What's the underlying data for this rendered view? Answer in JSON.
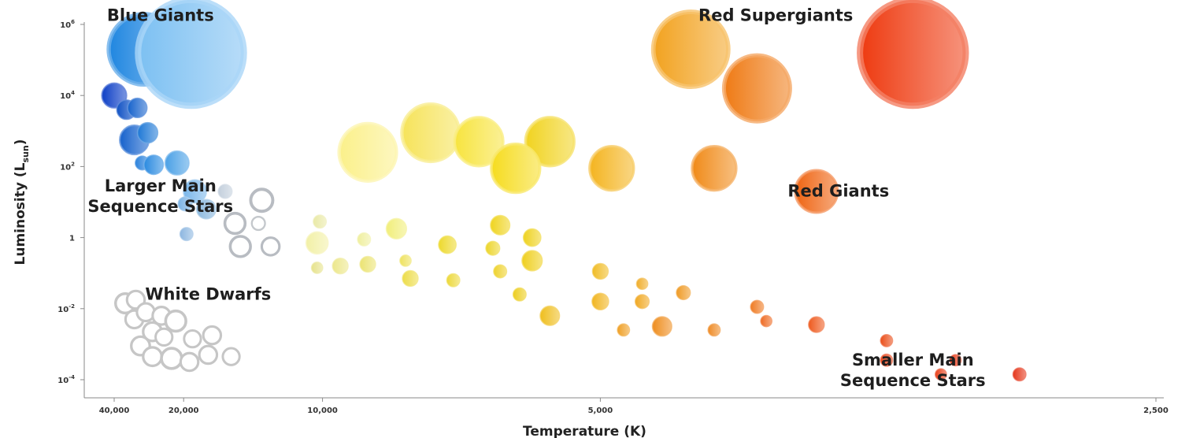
{
  "chart_data": {
    "type": "scatter",
    "title": "",
    "xlabel": "Temperature (K)",
    "ylabel": "Luminosity (L",
    "ylabel_sub": "sun",
    "ylabel_close": ")",
    "x_scale": "reciprocal",
    "xlim": [
      40000,
      2500
    ],
    "y_scale": "log",
    "ylim_exponent": [
      -4,
      6
    ],
    "grid": false,
    "x_ticks": [
      {
        "value": 40000,
        "label": "40,000"
      },
      {
        "value": 20000,
        "label": "20,000"
      },
      {
        "value": 10000,
        "label": "10,000"
      },
      {
        "value": 5000,
        "label": "5,000"
      },
      {
        "value": 2500,
        "label": "2,500"
      }
    ],
    "y_ticks": [
      {
        "exp": 6,
        "base": "10",
        "sup": "6"
      },
      {
        "exp": 4,
        "base": "10",
        "sup": "4"
      },
      {
        "exp": 2,
        "base": "10",
        "sup": "2"
      },
      {
        "exp": 0,
        "base": "1",
        "sup": ""
      },
      {
        "exp": -2,
        "base": "10",
        "sup": "-2"
      },
      {
        "exp": -4,
        "base": "10",
        "sup": "-4"
      }
    ],
    "groups": [
      {
        "name": "Blue Giants",
        "label_lines": [
          "Blue Giants"
        ],
        "label_x": 24000,
        "label_exp": 6.1
      },
      {
        "name": "Red Supergiants",
        "label_lines": [
          "Red Supergiants"
        ],
        "label_x": 3800,
        "label_exp": 6.1
      },
      {
        "name": "Larger Main Sequence Stars",
        "label_lines": [
          "Larger Main",
          "Sequence Stars"
        ],
        "label_x": 24000,
        "label_exp": 1.3
      },
      {
        "name": "Red Giants",
        "label_lines": [
          "Red Giants"
        ],
        "label_x": 3500,
        "label_exp": 1.15
      },
      {
        "name": "White Dwarfs",
        "label_lines": [
          "White Dwarfs"
        ],
        "label_x": 17000,
        "label_exp": -1.75
      },
      {
        "name": "Smaller Main Sequence Stars",
        "label_lines": [
          "Smaller Main",
          "Sequence Stars"
        ],
        "label_x": 3200,
        "label_exp": -3.6
      }
    ],
    "stars": [
      {
        "group": "Blue Giants",
        "temp": 28000,
        "exp": 5.3,
        "size": 8,
        "color": "#1f86e0",
        "fill": true
      },
      {
        "group": "Blue Giants",
        "temp": 19000,
        "exp": 5.2,
        "size": 12,
        "color": "#7cc0f2",
        "fill": true
      },
      {
        "group": "Red Supergiants",
        "temp": 4300,
        "exp": 5.3,
        "size": 8.5,
        "color": "#f2a21f",
        "fill": true
      },
      {
        "group": "Red Supergiants",
        "temp": 3200,
        "exp": 5.2,
        "size": 12,
        "color": "#ee3a10",
        "fill": true
      },
      {
        "group": "Red Supergiants",
        "temp": 3900,
        "exp": 4.2,
        "size": 7.5,
        "color": "#ef7a14",
        "fill": true
      },
      {
        "group": "Larger Main Sequence Stars",
        "temp": 40000,
        "exp": 4.0,
        "size": 2.8,
        "color": "#0d3fc6",
        "fill": true
      },
      {
        "group": "Larger Main Sequence Stars",
        "temp": 34000,
        "exp": 3.6,
        "size": 2.2,
        "color": "#1152c4",
        "fill": true
      },
      {
        "group": "Larger Main Sequence Stars",
        "temp": 30000,
        "exp": 3.65,
        "size": 2.2,
        "color": "#1662cc",
        "fill": true
      },
      {
        "group": "Larger Main Sequence Stars",
        "temp": 31000,
        "exp": 2.75,
        "size": 3.3,
        "color": "#1662cc",
        "fill": true
      },
      {
        "group": "Larger Main Sequence Stars",
        "temp": 27000,
        "exp": 2.95,
        "size": 2.3,
        "color": "#1e78d6",
        "fill": true
      },
      {
        "group": "Larger Main Sequence Stars",
        "temp": 28500,
        "exp": 2.1,
        "size": 1.6,
        "color": "#2a82dc",
        "fill": true
      },
      {
        "group": "Larger Main Sequence Stars",
        "temp": 25500,
        "exp": 2.05,
        "size": 2.2,
        "color": "#2a8ae0",
        "fill": true
      },
      {
        "group": "Larger Main Sequence Stars",
        "temp": 21000,
        "exp": 2.1,
        "size": 2.7,
        "color": "#4aa0e6",
        "fill": true
      },
      {
        "group": "Larger Main Sequence Stars",
        "temp": 18500,
        "exp": 1.3,
        "size": 2.6,
        "color": "#79b6ea",
        "fill": true
      },
      {
        "group": "Larger Main Sequence Stars",
        "temp": 19800,
        "exp": 0.95,
        "size": 1.6,
        "color": "#7ab2e4",
        "fill": true
      },
      {
        "group": "Larger Main Sequence Stars",
        "temp": 17200,
        "exp": 0.8,
        "size": 2.2,
        "color": "#8ab8de",
        "fill": true
      },
      {
        "group": "Larger Main Sequence Stars",
        "temp": 19600,
        "exp": 0.1,
        "size": 1.5,
        "color": "#8cb6e0",
        "fill": true
      },
      {
        "group": "Larger Main Sequence Stars",
        "temp": 15400,
        "exp": 1.3,
        "size": 1.6,
        "color": "#c3cfdc",
        "fill": true
      },
      {
        "group": "Larger Main Sequence Stars",
        "temp": 12800,
        "exp": 1.05,
        "size": 2.5,
        "color": "#b8bcc2",
        "fill": false
      },
      {
        "group": "Larger Main Sequence Stars",
        "temp": 14600,
        "exp": 0.4,
        "size": 2.3,
        "color": "#b8bcc2",
        "fill": false
      },
      {
        "group": "Larger Main Sequence Stars",
        "temp": 13000,
        "exp": 0.4,
        "size": 1.5,
        "color": "#c4c8cc",
        "fill": false
      },
      {
        "group": "Larger Main Sequence Stars",
        "temp": 14200,
        "exp": -0.25,
        "size": 2.3,
        "color": "#b8bcc2",
        "fill": false
      },
      {
        "group": "Larger Main Sequence Stars",
        "temp": 12300,
        "exp": -0.25,
        "size": 2.0,
        "color": "#b8bcc2",
        "fill": false
      },
      {
        "group": "Red Giants",
        "temp": 8600,
        "exp": 2.4,
        "size": 6.5,
        "color": "#fbf08a",
        "fill": true
      },
      {
        "group": "Red Giants",
        "temp": 7200,
        "exp": 2.95,
        "size": 6.5,
        "color": "#f6e35a",
        "fill": true
      },
      {
        "group": "Red Giants",
        "temp": 6400,
        "exp": 2.7,
        "size": 5.5,
        "color": "#f7e43e",
        "fill": true
      },
      {
        "group": "Red Giants",
        "temp": 5500,
        "exp": 2.7,
        "size": 5.5,
        "color": "#f1d31f",
        "fill": true
      },
      {
        "group": "Red Giants",
        "temp": 5900,
        "exp": 1.95,
        "size": 5.5,
        "color": "#f6dc1f",
        "fill": true
      },
      {
        "group": "Red Giants",
        "temp": 4900,
        "exp": 1.95,
        "size": 5.0,
        "color": "#f4b41f",
        "fill": true
      },
      {
        "group": "Red Giants",
        "temp": 4150,
        "exp": 1.95,
        "size": 5.0,
        "color": "#f08a18",
        "fill": true
      },
      {
        "group": "Red Giants",
        "temp": 3600,
        "exp": 1.3,
        "size": 4.8,
        "color": "#ef6412",
        "fill": true
      },
      {
        "group": "Smaller Main Sequence Stars",
        "temp": 10200,
        "exp": -0.15,
        "size": 2.5,
        "color": "#f2f0a6",
        "fill": true
      },
      {
        "group": "Smaller Main Sequence Stars",
        "temp": 10100,
        "exp": 0.45,
        "size": 1.5,
        "color": "#e9e9a6",
        "fill": true
      },
      {
        "group": "Smaller Main Sequence Stars",
        "temp": 8700,
        "exp": -0.05,
        "size": 1.5,
        "color": "#efef9e",
        "fill": true
      },
      {
        "group": "Smaller Main Sequence Stars",
        "temp": 7900,
        "exp": 0.25,
        "size": 2.3,
        "color": "#f1ee7a",
        "fill": true
      },
      {
        "group": "Smaller Main Sequence Stars",
        "temp": 10200,
        "exp": -0.85,
        "size": 1.3,
        "color": "#e6e28a",
        "fill": true
      },
      {
        "group": "Smaller Main Sequence Stars",
        "temp": 9400,
        "exp": -0.8,
        "size": 1.8,
        "color": "#ece78a",
        "fill": true
      },
      {
        "group": "Smaller Main Sequence Stars",
        "temp": 8600,
        "exp": -0.75,
        "size": 1.8,
        "color": "#ebe372",
        "fill": true
      },
      {
        "group": "Smaller Main Sequence Stars",
        "temp": 7700,
        "exp": -0.65,
        "size": 1.3,
        "color": "#eee25e",
        "fill": true
      },
      {
        "group": "Smaller Main Sequence Stars",
        "temp": 7600,
        "exp": -1.15,
        "size": 1.8,
        "color": "#ecdc48",
        "fill": true
      },
      {
        "group": "Smaller Main Sequence Stars",
        "temp": 6800,
        "exp": -1.2,
        "size": 1.5,
        "color": "#ecd83a",
        "fill": true
      },
      {
        "group": "Smaller Main Sequence Stars",
        "temp": 6900,
        "exp": -0.2,
        "size": 2.0,
        "color": "#edd92c",
        "fill": true
      },
      {
        "group": "Smaller Main Sequence Stars",
        "temp": 6200,
        "exp": -0.3,
        "size": 1.6,
        "color": "#ecd52a",
        "fill": true
      },
      {
        "group": "Smaller Main Sequence Stars",
        "temp": 6100,
        "exp": -0.95,
        "size": 1.5,
        "color": "#eed22c",
        "fill": true
      },
      {
        "group": "Smaller Main Sequence Stars",
        "temp": 5700,
        "exp": -0.65,
        "size": 2.3,
        "color": "#efcf1e",
        "fill": true
      },
      {
        "group": "Smaller Main Sequence Stars",
        "temp": 6100,
        "exp": 0.35,
        "size": 2.2,
        "color": "#efd41f",
        "fill": true
      },
      {
        "group": "Smaller Main Sequence Stars",
        "temp": 5700,
        "exp": 0.0,
        "size": 2.0,
        "color": "#eed21f",
        "fill": true
      },
      {
        "group": "Smaller Main Sequence Stars",
        "temp": 5850,
        "exp": -1.6,
        "size": 1.5,
        "color": "#eccd1e",
        "fill": true
      },
      {
        "group": "Smaller Main Sequence Stars",
        "temp": 5500,
        "exp": -2.2,
        "size": 2.2,
        "color": "#efbe1d",
        "fill": true
      },
      {
        "group": "Smaller Main Sequence Stars",
        "temp": 5000,
        "exp": -0.95,
        "size": 1.8,
        "color": "#f0bc24",
        "fill": true
      },
      {
        "group": "Smaller Main Sequence Stars",
        "temp": 5000,
        "exp": -1.8,
        "size": 1.9,
        "color": "#f1b51f",
        "fill": true
      },
      {
        "group": "Smaller Main Sequence Stars",
        "temp": 4650,
        "exp": -1.3,
        "size": 1.3,
        "color": "#f0ad2a",
        "fill": true
      },
      {
        "group": "Smaller Main Sequence Stars",
        "temp": 4650,
        "exp": -1.8,
        "size": 1.6,
        "color": "#f0a822",
        "fill": true
      },
      {
        "group": "Smaller Main Sequence Stars",
        "temp": 4350,
        "exp": -1.55,
        "size": 1.6,
        "color": "#ef9a24",
        "fill": true
      },
      {
        "group": "Smaller Main Sequence Stars",
        "temp": 4800,
        "exp": -2.6,
        "size": 1.4,
        "color": "#ef9f24",
        "fill": true
      },
      {
        "group": "Smaller Main Sequence Stars",
        "temp": 4500,
        "exp": -2.5,
        "size": 2.2,
        "color": "#ee8d1e",
        "fill": true
      },
      {
        "group": "Smaller Main Sequence Stars",
        "temp": 4150,
        "exp": -2.6,
        "size": 1.4,
        "color": "#ee8a24",
        "fill": true
      },
      {
        "group": "Smaller Main Sequence Stars",
        "temp": 3900,
        "exp": -1.95,
        "size": 1.5,
        "color": "#ef7a22",
        "fill": true
      },
      {
        "group": "Smaller Main Sequence Stars",
        "temp": 3850,
        "exp": -2.35,
        "size": 1.3,
        "color": "#ee6a22",
        "fill": true
      },
      {
        "group": "Smaller Main Sequence Stars",
        "temp": 3600,
        "exp": -2.45,
        "size": 1.8,
        "color": "#ee5a1e",
        "fill": true
      },
      {
        "group": "Smaller Main Sequence Stars",
        "temp": 3300,
        "exp": -2.9,
        "size": 1.4,
        "color": "#ea4d18",
        "fill": true
      },
      {
        "group": "Smaller Main Sequence Stars",
        "temp": 3300,
        "exp": -3.45,
        "size": 1.4,
        "color": "#e9451a",
        "fill": true
      },
      {
        "group": "Smaller Main Sequence Stars",
        "temp": 3050,
        "exp": -3.45,
        "size": 1.3,
        "color": "#e83c1a",
        "fill": true
      },
      {
        "group": "Smaller Main Sequence Stars",
        "temp": 3100,
        "exp": -3.85,
        "size": 1.3,
        "color": "#e8401a",
        "fill": true
      },
      {
        "group": "Smaller Main Sequence Stars",
        "temp": 2850,
        "exp": -3.85,
        "size": 1.5,
        "color": "#e5361a",
        "fill": true
      },
      {
        "group": "White Dwarfs",
        "temp": 34500,
        "exp": -1.85,
        "size": 2.2,
        "color": "#c6c6c6",
        "fill": false
      },
      {
        "group": "White Dwarfs",
        "temp": 30500,
        "exp": -1.75,
        "size": 2.0,
        "color": "#c6c6c6",
        "fill": false
      },
      {
        "group": "White Dwarfs",
        "temp": 31000,
        "exp": -2.3,
        "size": 2.0,
        "color": "#c6c6c6",
        "fill": false
      },
      {
        "group": "White Dwarfs",
        "temp": 27500,
        "exp": -2.1,
        "size": 2.0,
        "color": "#c6c6c6",
        "fill": false
      },
      {
        "group": "White Dwarfs",
        "temp": 23800,
        "exp": -2.2,
        "size": 2.0,
        "color": "#c6c6c6",
        "fill": false
      },
      {
        "group": "White Dwarfs",
        "temp": 21200,
        "exp": -2.35,
        "size": 2.3,
        "color": "#c6c6c6",
        "fill": false
      },
      {
        "group": "White Dwarfs",
        "temp": 25800,
        "exp": -2.65,
        "size": 2.1,
        "color": "#c6c6c6",
        "fill": false
      },
      {
        "group": "White Dwarfs",
        "temp": 23300,
        "exp": -2.8,
        "size": 1.9,
        "color": "#c6c6c6",
        "fill": false
      },
      {
        "group": "White Dwarfs",
        "temp": 18800,
        "exp": -2.85,
        "size": 1.9,
        "color": "#c6c6c6",
        "fill": false
      },
      {
        "group": "White Dwarfs",
        "temp": 16600,
        "exp": -2.75,
        "size": 2.0,
        "color": "#c6c6c6",
        "fill": false
      },
      {
        "group": "White Dwarfs",
        "temp": 29000,
        "exp": -3.05,
        "size": 2.1,
        "color": "#c6c6c6",
        "fill": false
      },
      {
        "group": "White Dwarfs",
        "temp": 25800,
        "exp": -3.35,
        "size": 2.1,
        "color": "#c6c6c6",
        "fill": false
      },
      {
        "group": "White Dwarfs",
        "temp": 21900,
        "exp": -3.4,
        "size": 2.3,
        "color": "#c6c6c6",
        "fill": false
      },
      {
        "group": "White Dwarfs",
        "temp": 19200,
        "exp": -3.5,
        "size": 2.0,
        "color": "#c6c6c6",
        "fill": false
      },
      {
        "group": "White Dwarfs",
        "temp": 17000,
        "exp": -3.3,
        "size": 2.0,
        "color": "#c6c6c6",
        "fill": false
      },
      {
        "group": "White Dwarfs",
        "temp": 14900,
        "exp": -3.35,
        "size": 1.9,
        "color": "#c6c6c6",
        "fill": false
      }
    ]
  }
}
